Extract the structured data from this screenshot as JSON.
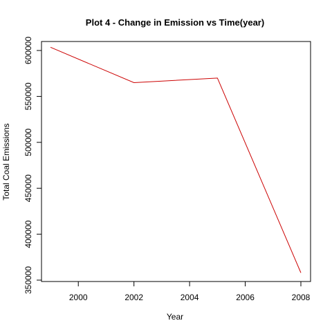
{
  "chart_data": {
    "type": "line",
    "title": "Plot 4 - Change in Emission vs Time(year)",
    "xlabel": "Year",
    "ylabel": "Total Coal Emissions",
    "xlim": [
      1999,
      2008
    ],
    "ylim": [
      350000,
      600000
    ],
    "xticks": [
      2000,
      2002,
      2004,
      2006,
      2008
    ],
    "yticks": [
      350000,
      400000,
      450000,
      500000,
      550000,
      600000
    ],
    "grid": false,
    "series": [
      {
        "color": "#cc0000",
        "x": [
          1999,
          2002,
          2005,
          2008
        ],
        "y": [
          603500,
          565000,
          570000,
          358000
        ]
      }
    ]
  }
}
